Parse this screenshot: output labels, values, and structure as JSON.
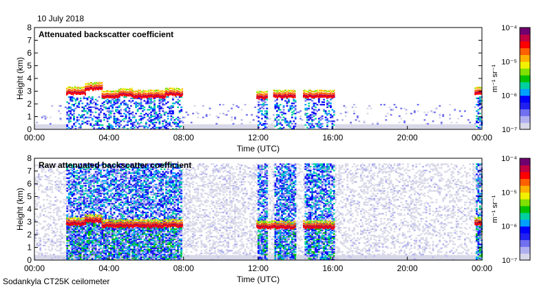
{
  "date_label": "10 July 2018",
  "footer": "Sodankyla CT25K ceilometer",
  "chart_data": [
    {
      "type": "heatmap",
      "title": "Attenuated backscatter coefficient",
      "xlabel": "Time (UTC)",
      "ylabel": "Height (km)",
      "xlim": [
        0,
        24
      ],
      "ylim": [
        0,
        8
      ],
      "xticks": [
        "00:00",
        "04:00",
        "08:00",
        "12:00",
        "16:00",
        "20:00",
        "00:00"
      ],
      "yticks": [
        "0",
        "1",
        "2",
        "3",
        "4",
        "5",
        "6",
        "7",
        "8"
      ],
      "colorbar": {
        "label": "m⁻¹ sr⁻¹",
        "ticks": [
          "10⁻⁷",
          "10⁻⁶",
          "10⁻⁵",
          "10⁻⁴"
        ],
        "range": [
          1e-07,
          0.0001
        ],
        "scale": "log"
      },
      "cloud_layers": [
        {
          "start": 1.7,
          "end": 2.7,
          "height": 2.85
        },
        {
          "start": 2.7,
          "end": 3.6,
          "height": 3.2
        },
        {
          "start": 3.6,
          "end": 4.5,
          "height": 2.6
        },
        {
          "start": 4.5,
          "end": 5.2,
          "height": 2.75
        },
        {
          "start": 5.2,
          "end": 7.0,
          "height": 2.6
        },
        {
          "start": 7.0,
          "end": 7.9,
          "height": 2.75
        },
        {
          "start": 11.9,
          "end": 12.5,
          "height": 2.5
        },
        {
          "start": 12.8,
          "end": 14.0,
          "height": 2.6
        },
        {
          "start": 14.4,
          "end": 16.1,
          "height": 2.6
        },
        {
          "start": 23.6,
          "end": 24.0,
          "height": 2.85
        }
      ],
      "signal_regions": [
        [
          1.7,
          7.9
        ],
        [
          11.9,
          12.5
        ],
        [
          12.8,
          14.0
        ],
        [
          14.4,
          16.1
        ],
        [
          23.6,
          24.0
        ]
      ]
    },
    {
      "type": "heatmap",
      "title": "Raw attenuated backscatter coefficient",
      "xlabel": "Time (UTC)",
      "ylabel": "Height (km)",
      "xlim": [
        0,
        24
      ],
      "ylim": [
        0,
        8
      ],
      "xticks": [
        "00:00",
        "04:00",
        "08:00",
        "12:00",
        "16:00",
        "20:00",
        "00:00"
      ],
      "yticks": [
        "0",
        "1",
        "2",
        "3",
        "4",
        "5",
        "6",
        "7",
        "8"
      ],
      "colorbar": {
        "label": "m⁻¹ sr⁻¹",
        "ticks": [
          "10⁻⁷",
          "10⁻⁶",
          "10⁻⁵",
          "10⁻⁴"
        ],
        "range": [
          1e-07,
          0.0001
        ],
        "scale": "log"
      },
      "cloud_layers": [
        {
          "start": 1.7,
          "end": 2.7,
          "height": 2.85
        },
        {
          "start": 2.7,
          "end": 3.6,
          "height": 3.1
        },
        {
          "start": 3.6,
          "end": 4.5,
          "height": 2.7
        },
        {
          "start": 4.5,
          "end": 7.9,
          "height": 2.7
        },
        {
          "start": 11.9,
          "end": 14.0,
          "height": 2.6
        },
        {
          "start": 14.4,
          "end": 16.1,
          "height": 2.6
        },
        {
          "start": 23.6,
          "end": 24.0,
          "height": 2.85
        }
      ],
      "signal_regions": [
        [
          1.7,
          7.9
        ],
        [
          11.9,
          12.5
        ],
        [
          12.8,
          14.0
        ],
        [
          14.4,
          16.1
        ],
        [
          23.6,
          24.0
        ]
      ]
    }
  ]
}
